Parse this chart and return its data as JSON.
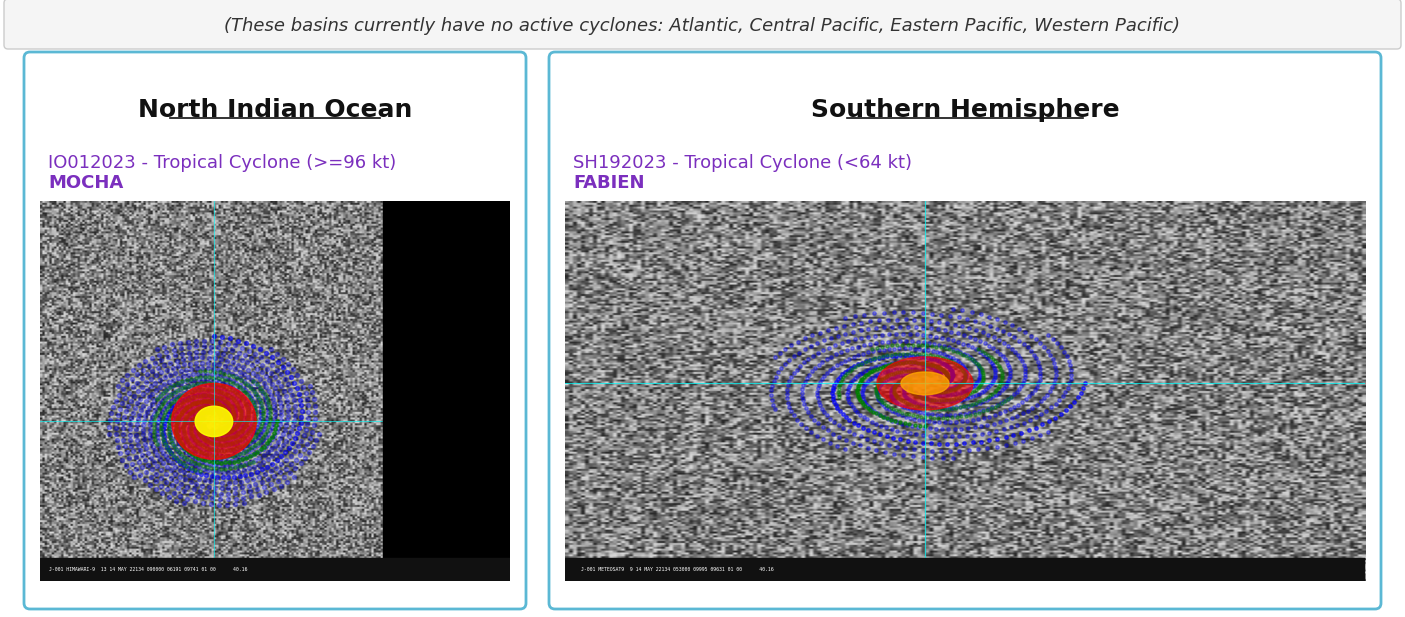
{
  "background_color": "#ffffff",
  "header_text": "(These basins currently have no active cyclones: Atlantic, Central Pacific, Eastern Pacific, Western Pacific)",
  "header_color": "#333333",
  "header_fontsize": 13,
  "header_style": "italic",
  "panel_border_color": "#5bb8d4",
  "panel_bg_color": "#ffffff",
  "panel1_title": "North Indian Ocean",
  "panel2_title": "Southern Hemisphere",
  "panel1_title_fontsize": 18,
  "panel2_title_fontsize": 18,
  "panel1_link1": "IO012023 - Tropical Cyclone (>=96 kt)",
  "panel1_link2": "MOCHA",
  "panel2_link1": "SH192023 - Tropical Cyclone (<64 kt)",
  "panel2_link2": "FABIEN",
  "link_color": "#7b2fbe",
  "link_fontsize": 13,
  "title_underline": true,
  "fig_width": 14.05,
  "fig_height": 6.17
}
